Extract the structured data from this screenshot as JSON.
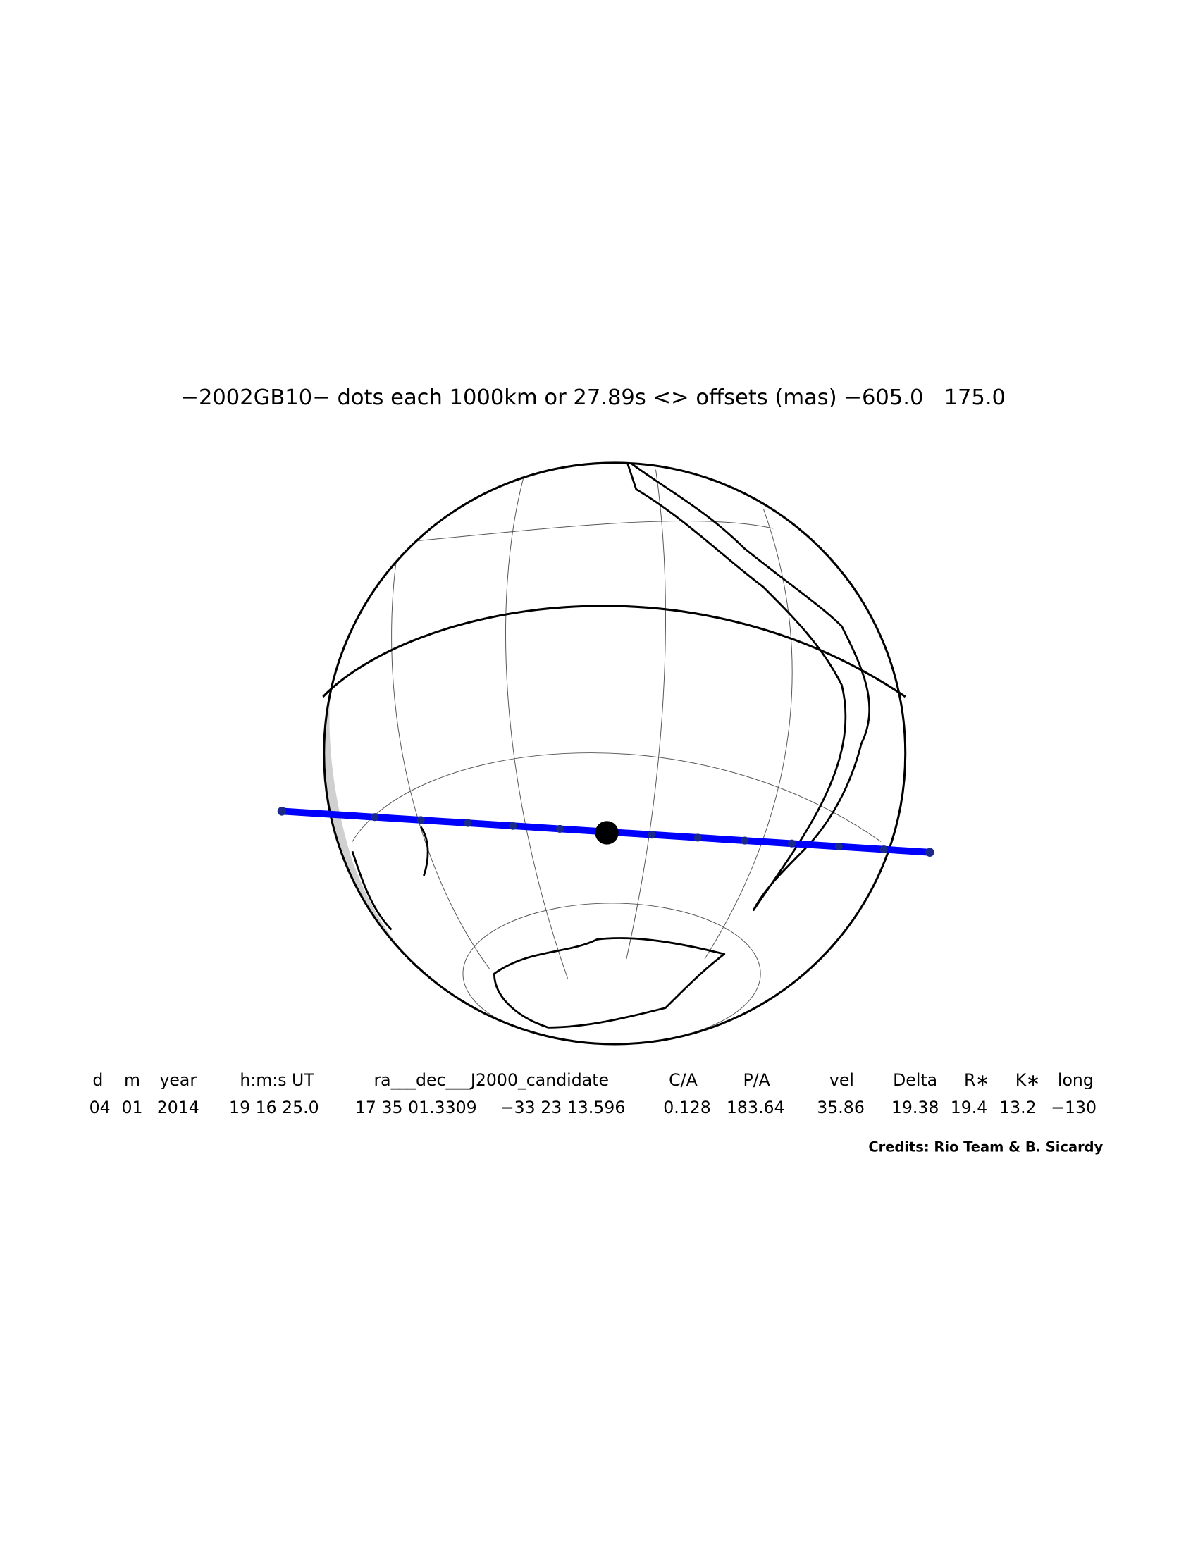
{
  "header": {
    "title": "−2002GB10− dots each 1000km or 27.89s <> offsets (mas) −605.0   175.0"
  },
  "table": {
    "columns": [
      "d",
      "m",
      "year",
      "h:m:s UT",
      "ra___dec___J2000_candidate",
      "C/A",
      "P/A",
      "vel",
      "Delta",
      "R∗",
      "K∗",
      "long"
    ],
    "rows": [
      [
        "04",
        "01",
        "2014",
        "19 16 25.0",
        "17 35 01.3309",
        "−33 23 13.596",
        "0.128",
        "183.64",
        "35.86",
        "19.38",
        "19.4",
        "13.2",
        "−130"
      ]
    ]
  },
  "credits": "Credits: Rio Team & B. Sicardy"
}
